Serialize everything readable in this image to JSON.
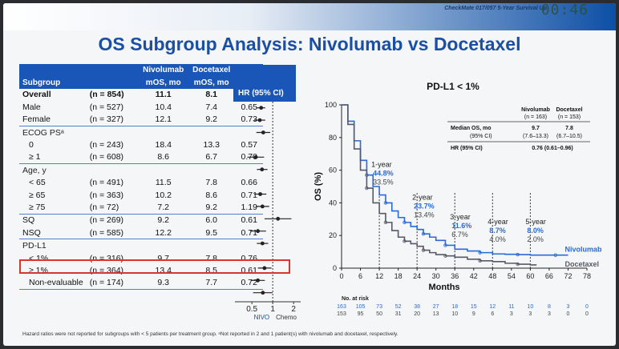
{
  "header": {
    "corner_text": "CheckMate 017/057 5-Year Survival Up",
    "timestamp": "00:46"
  },
  "title": "OS Subgroup Analysis: Nivolumab vs Docetaxel",
  "table": {
    "col_nivo": "Nivolumab",
    "col_doce": "Docetaxel",
    "col_subgroup": "Subgroup",
    "col_nivo_mos": "mOS, mo",
    "col_doce_mos": "mOS, mo",
    "col_hr": "HR",
    "col_hrci": "HR (95% CI)",
    "rows": [
      {
        "label": "Overall",
        "n": "(n = 854)",
        "nivo": "11.1",
        "doce": "8.1",
        "hr": "0.68"
      },
      {
        "label": "Male",
        "n": "(n = 527)",
        "nivo": "10.4",
        "doce": "7.4",
        "hr": "0.65"
      },
      {
        "label": "Female",
        "n": "(n = 327)",
        "nivo": "12.1",
        "doce": "9.2",
        "hr": "0.73"
      },
      {
        "label": "ECOG PSᵃ",
        "n": "",
        "nivo": "",
        "doce": "",
        "hr": ""
      },
      {
        "label": "0",
        "n": "(n = 243)",
        "nivo": "18.4",
        "doce": "13.3",
        "hr": "0.57"
      },
      {
        "label": "≥ 1",
        "n": "(n = 608)",
        "nivo": "8.6",
        "doce": "6.7",
        "hr": "0.70"
      },
      {
        "label": "Age, y",
        "n": "",
        "nivo": "",
        "doce": "",
        "hr": ""
      },
      {
        "label": "< 65",
        "n": "(n = 491)",
        "nivo": "11.5",
        "doce": "7.8",
        "hr": "0.66"
      },
      {
        "label": "≥ 65",
        "n": "(n = 363)",
        "nivo": "10.2",
        "doce": "8.6",
        "hr": "0.71"
      },
      {
        "label": "≥ 75",
        "n": "(n = 72)",
        "nivo": "7.2",
        "doce": "9.2",
        "hr": "1.19"
      },
      {
        "label": "SQ",
        "n": "(n = 269)",
        "nivo": "9.2",
        "doce": "6.0",
        "hr": "0.61"
      },
      {
        "label": "NSQ",
        "n": "(n = 585)",
        "nivo": "12.2",
        "doce": "9.5",
        "hr": "0.71"
      },
      {
        "label": "PD-L1",
        "n": "",
        "nivo": "",
        "doce": "",
        "hr": ""
      },
      {
        "label": "< 1%",
        "n": "(n = 316)",
        "nivo": "9.7",
        "doce": "7.8",
        "hr": "0.76"
      },
      {
        "label": "≥ 1%",
        "n": "(n = 364)",
        "nivo": "13.4",
        "doce": "8.5",
        "hr": "0.61"
      },
      {
        "label": "Non-evaluable",
        "n": "(n = 174)",
        "nivo": "9.3",
        "doce": "7.7",
        "hr": "0.72"
      }
    ]
  },
  "forest": {
    "ticks": [
      "0.5",
      "1",
      "2"
    ],
    "left_label": "NIVO",
    "right_label": "Chemo",
    "points": [
      {
        "hr": 0.68,
        "lo": 0.59,
        "hi": 0.78
      },
      {
        "hr": 0.65,
        "lo": 0.54,
        "hi": 0.78
      },
      {
        "hr": 0.73,
        "lo": 0.58,
        "hi": 0.92
      },
      null,
      {
        "hr": 0.57,
        "lo": 0.43,
        "hi": 0.75
      },
      {
        "hr": 0.7,
        "lo": 0.59,
        "hi": 0.84
      },
      null,
      {
        "hr": 0.66,
        "lo": 0.54,
        "hi": 0.81
      },
      {
        "hr": 0.71,
        "lo": 0.57,
        "hi": 0.89
      },
      {
        "hr": 1.19,
        "lo": 0.76,
        "hi": 1.86
      },
      {
        "hr": 0.61,
        "lo": 0.47,
        "hi": 0.8
      },
      {
        "hr": 0.71,
        "lo": 0.59,
        "hi": 0.86
      },
      null,
      {
        "hr": 0.76,
        "lo": 0.61,
        "hi": 0.96
      },
      {
        "hr": 0.61,
        "lo": 0.48,
        "hi": 0.77
      },
      {
        "hr": 0.72,
        "lo": 0.52,
        "hi": 0.99
      }
    ]
  },
  "footnote": "Hazard ratios were not reported for subgroups with < 5 patients per treatment group. ᵃNot reported in 2 and 1 patient(s) with nivolumab and docetaxel, respectively.",
  "chart_data": {
    "type": "line",
    "title": "PD-L1 < 1%",
    "xlabel": "Months",
    "ylabel": "OS (%)",
    "xlim": [
      0,
      78
    ],
    "ylim": [
      0,
      100
    ],
    "xticks": [
      "0",
      "6",
      "12",
      "18",
      "24",
      "30",
      "36",
      "42",
      "48",
      "54",
      "60",
      "66",
      "72",
      "78"
    ],
    "yticks": [
      "0",
      "20",
      "40",
      "60",
      "80",
      "100"
    ],
    "series": [
      {
        "name": "Nivolumab",
        "color": "#2a6ad6",
        "x": [
          0,
          2,
          4,
          6,
          8,
          10,
          12,
          14,
          16,
          18,
          20,
          22,
          24,
          26,
          28,
          30,
          33,
          36,
          40,
          44,
          48,
          52,
          56,
          60,
          64,
          68,
          72
        ],
        "y": [
          100,
          90,
          78,
          66,
          57,
          50,
          44.8,
          40,
          35,
          31,
          28,
          25.5,
          23.7,
          21,
          19,
          17,
          14,
          11.6,
          10.5,
          9.5,
          8.7,
          8.5,
          8.3,
          8.0,
          8.0,
          8.0,
          8.0
        ]
      },
      {
        "name": "Docetaxel",
        "color": "#555a66",
        "x": [
          0,
          2,
          4,
          6,
          8,
          10,
          12,
          14,
          16,
          18,
          20,
          22,
          24,
          26,
          28,
          30,
          33,
          36,
          40,
          44,
          48,
          52,
          56,
          60,
          62
        ],
        "y": [
          100,
          88,
          73,
          60,
          49,
          40,
          33.5,
          28,
          23,
          19,
          16.5,
          15,
          13.4,
          11,
          9.5,
          8.3,
          7.5,
          6.7,
          5.5,
          4.5,
          4.0,
          3.0,
          2.4,
          2.0,
          2.0
        ]
      }
    ],
    "landmarks": [
      {
        "label": "1-year",
        "nivo": "44.8%",
        "doce": "33.5%"
      },
      {
        "label": "2-year",
        "nivo": "23.7%",
        "doce": "13.4%"
      },
      {
        "label": "3-year",
        "nivo": "11.6%",
        "doce": "6.7%"
      },
      {
        "label": "4-year",
        "nivo": "8.7%",
        "doce": "4.0%"
      },
      {
        "label": "5-year",
        "nivo": "8.0%",
        "doce": "2.0%"
      }
    ],
    "legend_box": {
      "col1": "Nivolumab",
      "col1_n": "(n = 163)",
      "col2": "Docetaxel",
      "col2_n": "(n = 153)",
      "row1_label": "Median OS, mo",
      "row1_v1": "9.7",
      "row1_v2": "7.8",
      "row2_label": "(95% CI)",
      "row2_v1": "(7.6–13.3)",
      "row2_v2": "(6.7–10.5)",
      "row3_label": "HR (95% CI)",
      "row3_v": "0.76 (0.61–0.96)"
    },
    "at_risk_label": "No. at risk",
    "at_risk_nivo": [
      "163",
      "105",
      "73",
      "52",
      "38",
      "27",
      "18",
      "15",
      "12",
      "11",
      "10",
      "8",
      "3",
      "0"
    ],
    "at_risk_doce": [
      "153",
      "95",
      "50",
      "31",
      "20",
      "13",
      "10",
      "9",
      "6",
      "3",
      "3",
      "3",
      "0",
      "0"
    ]
  }
}
